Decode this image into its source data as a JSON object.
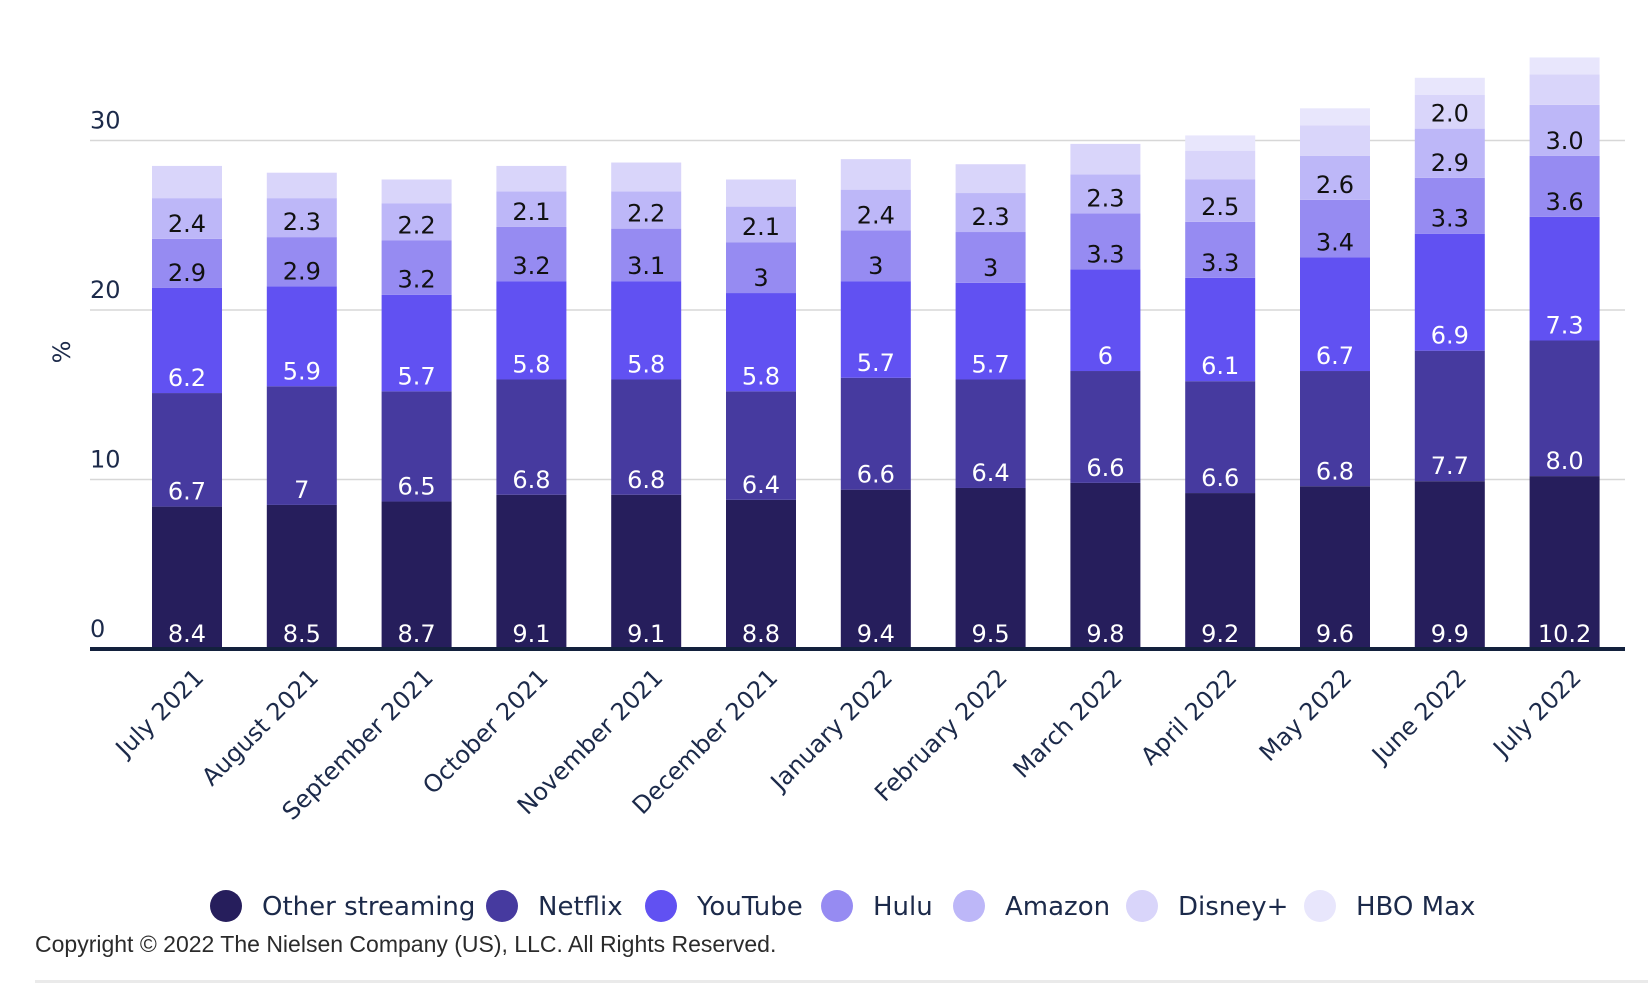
{
  "chart_data": {
    "type": "bar",
    "stacked": true,
    "title": "",
    "xlabel": "",
    "ylabel": "%",
    "ylim": [
      0,
      35
    ],
    "yticks": [
      0,
      10,
      20,
      30
    ],
    "grid": true,
    "legend_position": "bottom",
    "categories": [
      "July 2021",
      "August 2021",
      "September 2021",
      "October 2021",
      "November 2021",
      "December 2021",
      "January 2022",
      "February 2022",
      "March 2022",
      "April 2022",
      "May 2022",
      "June 2022",
      "July 2022"
    ],
    "series": [
      {
        "name": "Other streaming",
        "color": "#261e5c",
        "label_color": "#ffffff",
        "values": [
          8.4,
          8.5,
          8.7,
          9.1,
          9.1,
          8.8,
          9.4,
          9.5,
          9.8,
          9.2,
          9.6,
          9.9,
          10.2
        ],
        "labels": [
          "8.4",
          "8.5",
          "8.7",
          "9.1",
          "9.1",
          "8.8",
          "9.4",
          "9.5",
          "9.8",
          "9.2",
          "9.6",
          "9.9",
          "10.2"
        ]
      },
      {
        "name": "Netflix",
        "color": "#463a9f",
        "label_color": "#ffffff",
        "values": [
          6.7,
          7,
          6.5,
          6.8,
          6.8,
          6.4,
          6.6,
          6.4,
          6.6,
          6.6,
          6.8,
          7.7,
          8.0
        ],
        "labels": [
          "6.7",
          "7",
          "6.5",
          "6.8",
          "6.8",
          "6.4",
          "6.6",
          "6.4",
          "6.6",
          "6.6",
          "6.8",
          "7.7",
          "8.0"
        ]
      },
      {
        "name": "YouTube",
        "color": "#6151f2",
        "label_color": "#ffffff",
        "values": [
          6.2,
          5.9,
          5.7,
          5.8,
          5.8,
          5.8,
          5.7,
          5.7,
          6,
          6.1,
          6.7,
          6.9,
          7.3
        ],
        "labels": [
          "6.2",
          "5.9",
          "5.7",
          "5.8",
          "5.8",
          "5.8",
          "5.7",
          "5.7",
          "6",
          "6.1",
          "6.7",
          "6.9",
          "7.3"
        ]
      },
      {
        "name": "Hulu",
        "color": "#968bf2",
        "label_color": "#111111",
        "values": [
          2.9,
          2.9,
          3.2,
          3.2,
          3.1,
          3,
          3,
          3,
          3.3,
          3.3,
          3.4,
          3.3,
          3.6
        ],
        "labels": [
          "2.9",
          "2.9",
          "3.2",
          "3.2",
          "3.1",
          "3",
          "3",
          "3",
          "3.3",
          "3.3",
          "3.4",
          "3.3",
          "3.6"
        ]
      },
      {
        "name": "Amazon",
        "color": "#bdb7f8",
        "label_color": "#111111",
        "values": [
          2.4,
          2.3,
          2.2,
          2.1,
          2.2,
          2.1,
          2.4,
          2.3,
          2.3,
          2.5,
          2.6,
          2.9,
          3.0
        ],
        "labels": [
          "2.4",
          "2.3",
          "2.2",
          "2.1",
          "2.2",
          "2.1",
          "2.4",
          "2.3",
          "2.3",
          "2.5",
          "2.6",
          "2.9",
          "3.0"
        ]
      },
      {
        "name": "Disney+",
        "color": "#d9d5fa",
        "label_color": "#111111",
        "values": [
          1.9,
          1.5,
          1.4,
          1.5,
          1.7,
          1.6,
          1.8,
          1.7,
          1.8,
          1.7,
          1.8,
          2.0,
          1.8
        ],
        "labels": [
          "",
          "",
          "",
          "",
          "",
          "",
          "",
          "",
          "",
          "",
          "",
          "2.0",
          ""
        ]
      },
      {
        "name": "HBO Max",
        "color": "#e8e6fc",
        "label_color": "#111111",
        "values": [
          0,
          0,
          0,
          0,
          0,
          0,
          0,
          0,
          0,
          0.9,
          1.0,
          1.0,
          1.0
        ],
        "labels": [
          "",
          "",
          "",
          "",
          "",
          "",
          "",
          "",
          "",
          "",
          "",
          "",
          ""
        ]
      }
    ]
  },
  "footer": {
    "copyright": "Copyright © 2022 The Nielsen Company (US), LLC. All Rights Reserved."
  }
}
